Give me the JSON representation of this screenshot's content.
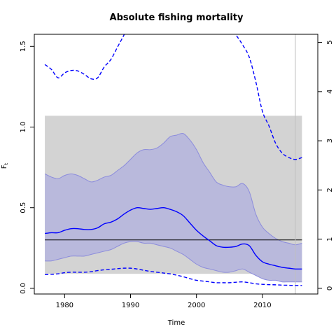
{
  "chart_data": {
    "type": "line",
    "title": "Absolute fishing mortality",
    "xlabel": "Time",
    "ylabel": "F",
    "ylabel_sub": "t",
    "xlim": [
      1975.4,
      2018.4
    ],
    "ylim_left": [
      -0.035,
      1.575
    ],
    "ylim_right": [
      -0.115,
      5.165
    ],
    "x_ticks": [
      1980,
      1990,
      2000,
      2010
    ],
    "y_ticks_left": [
      0.0,
      0.5,
      1.0,
      1.5
    ],
    "y_ticks_right": [
      0,
      1,
      2,
      3,
      4,
      5
    ],
    "grid": false,
    "legend": "none",
    "colors": {
      "median_line": "#0000ff",
      "credible_band": "#b9b9dc",
      "credible_band_edge": "#8c8cdc",
      "reference_rect": "#d3d3d3",
      "reference_line": "#000000",
      "secondary_axis_line": "#0000ff",
      "vertical_marker": "#c0c0c0"
    },
    "reference_rect": {
      "x": [
        1977,
        2016
      ],
      "y": [
        0.09,
        1.07
      ]
    },
    "reference_line_y": 0.3,
    "vertical_marker_x": 2015,
    "series": [
      {
        "style": "band",
        "x": [
          1977,
          1978,
          1979,
          1980,
          1981,
          1982,
          1983,
          1984,
          1985,
          1986,
          1987,
          1988,
          1989,
          1990,
          1991,
          1992,
          1993,
          1994,
          1995,
          1996,
          1997,
          1998,
          1999,
          2000,
          2001,
          2002,
          2003,
          2004,
          2005,
          2006,
          2007,
          2008,
          2009,
          2010,
          2011,
          2012,
          2013,
          2014,
          2015,
          2016
        ],
        "upper": [
          0.71,
          0.69,
          0.68,
          0.7,
          0.71,
          0.7,
          0.68,
          0.66,
          0.67,
          0.69,
          0.7,
          0.73,
          0.76,
          0.8,
          0.84,
          0.86,
          0.86,
          0.87,
          0.9,
          0.94,
          0.95,
          0.96,
          0.92,
          0.86,
          0.78,
          0.72,
          0.66,
          0.64,
          0.63,
          0.63,
          0.65,
          0.6,
          0.46,
          0.38,
          0.34,
          0.31,
          0.29,
          0.28,
          0.27,
          0.28
        ],
        "lower": [
          0.17,
          0.17,
          0.18,
          0.19,
          0.2,
          0.2,
          0.2,
          0.21,
          0.22,
          0.23,
          0.24,
          0.26,
          0.28,
          0.29,
          0.29,
          0.28,
          0.28,
          0.27,
          0.26,
          0.25,
          0.23,
          0.21,
          0.18,
          0.15,
          0.13,
          0.12,
          0.11,
          0.1,
          0.1,
          0.11,
          0.12,
          0.1,
          0.08,
          0.06,
          0.05,
          0.05,
          0.04,
          0.04,
          0.04,
          0.04
        ]
      },
      {
        "style": "solid",
        "axis": "left",
        "x": [
          1977,
          1978,
          1979,
          1980,
          1981,
          1982,
          1983,
          1984,
          1985,
          1986,
          1987,
          1988,
          1989,
          1990,
          1991,
          1992,
          1993,
          1994,
          1995,
          1996,
          1997,
          1998,
          1999,
          2000,
          2001,
          2002,
          2003,
          2004,
          2005,
          2006,
          2007,
          2008,
          2009,
          2010,
          2011,
          2012,
          2013,
          2014,
          2015,
          2016
        ],
        "values": [
          0.34,
          0.345,
          0.345,
          0.36,
          0.37,
          0.37,
          0.365,
          0.365,
          0.375,
          0.4,
          0.41,
          0.43,
          0.46,
          0.485,
          0.5,
          0.495,
          0.49,
          0.495,
          0.5,
          0.49,
          0.475,
          0.45,
          0.405,
          0.36,
          0.325,
          0.295,
          0.265,
          0.255,
          0.255,
          0.26,
          0.275,
          0.265,
          0.205,
          0.165,
          0.15,
          0.14,
          0.13,
          0.125,
          0.12,
          0.12
        ]
      },
      {
        "style": "dashed",
        "axis": "left",
        "x": [
          1977,
          1978,
          1979,
          1980,
          1981,
          1982,
          1983,
          1984,
          1985,
          1986,
          1987,
          1988,
          1989,
          1990,
          1991,
          1992,
          1993,
          1994,
          1995,
          1996,
          1997,
          1998,
          1999,
          2000,
          2001,
          2002,
          2003,
          2004,
          2005,
          2006,
          2007,
          2008,
          2009,
          2010,
          2011,
          2012,
          2013,
          2014,
          2015,
          2016
        ],
        "values": [
          0.085,
          0.087,
          0.09,
          0.097,
          0.1,
          0.1,
          0.1,
          0.103,
          0.11,
          0.115,
          0.118,
          0.122,
          0.125,
          0.125,
          0.12,
          0.112,
          0.105,
          0.1,
          0.095,
          0.09,
          0.082,
          0.072,
          0.06,
          0.05,
          0.045,
          0.04,
          0.035,
          0.035,
          0.035,
          0.038,
          0.04,
          0.035,
          0.028,
          0.025,
          0.023,
          0.022,
          0.02,
          0.019,
          0.018,
          0.018
        ]
      },
      {
        "style": "dashed",
        "axis": "right",
        "x": [
          1977,
          1978,
          1979,
          1980,
          1981,
          1982,
          1983,
          1984,
          1985,
          1986,
          1987,
          1988,
          1989,
          1989.5,
          2005.2,
          2006,
          2007,
          2008,
          2009,
          2010,
          2011,
          2012,
          2013,
          2014,
          2015,
          2016
        ],
        "values": [
          4.55,
          4.45,
          4.28,
          4.38,
          4.43,
          4.42,
          4.35,
          4.26,
          4.28,
          4.5,
          4.65,
          4.9,
          5.15,
          5.3,
          5.3,
          5.15,
          4.95,
          4.7,
          4.2,
          3.6,
          3.3,
          2.95,
          2.75,
          2.66,
          2.62,
          2.66
        ]
      }
    ]
  }
}
